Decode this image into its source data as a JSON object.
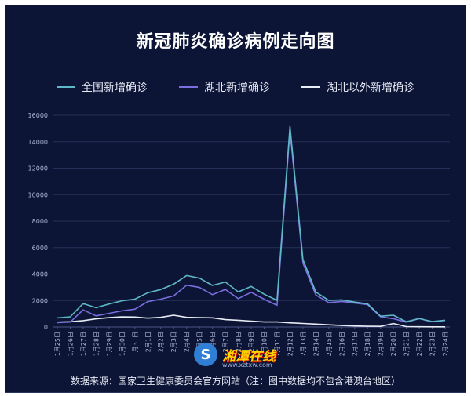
{
  "title": "新冠肺炎确诊病例走向图",
  "source": "数据来源：国家卫生健康委员会官方网站（注：图中数据均不包含港澳台地区）",
  "watermark": {
    "name": "湘潭在线",
    "url": "www.xztxw.com"
  },
  "chart_data": {
    "type": "line",
    "title": "新冠肺炎确诊病例走向图",
    "xlabel": "",
    "ylabel": "",
    "ylim": [
      0,
      16000
    ],
    "yticks": [
      0,
      2000,
      4000,
      6000,
      8000,
      10000,
      12000,
      14000,
      16000
    ],
    "grid": true,
    "legend_position": "top",
    "categories": [
      "1月25日",
      "1月26日",
      "1月27日",
      "1月28日",
      "1月29日",
      "1月30日",
      "1月31日",
      "2月1日",
      "2月2日",
      "2月3日",
      "2月4日",
      "2月5日",
      "2月6日",
      "2月7日",
      "2月8日",
      "2月9日",
      "2月10日",
      "2月11日",
      "2月12日",
      "2月13日",
      "2月14日",
      "2月15日",
      "2月16日",
      "2月17日",
      "2月18日",
      "2月19日",
      "2月20日",
      "2月21日",
      "2月22日",
      "2月23日",
      "2月24日"
    ],
    "series": [
      {
        "name": "全国新增确诊",
        "color": "#5fb8c8",
        "values": [
          688,
          769,
          1771,
          1459,
          1737,
          1982,
          2102,
          2590,
          2829,
          3235,
          3887,
          3694,
          3143,
          3399,
          2656,
          3062,
          2478,
          2015,
          15152,
          5090,
          2641,
          2009,
          2048,
          1886,
          1749,
          820,
          889,
          397,
          648,
          409,
          508
        ]
      },
      {
        "name": "湖北新增确诊",
        "color": "#7a6ee0",
        "values": [
          323,
          371,
          1291,
          840,
          1032,
          1220,
          1347,
          1921,
          2103,
          2345,
          3156,
          2987,
          2447,
          2841,
          2147,
          2618,
          2097,
          1638,
          14840,
          4823,
          2420,
          1843,
          1933,
          1807,
          1693,
          775,
          631,
          366,
          630,
          398,
          499
        ]
      },
      {
        "name": "湖北以外新增确诊",
        "color": "#e8ecf5",
        "values": [
          365,
          398,
          480,
          619,
          705,
          762,
          755,
          669,
          726,
          890,
          731,
          707,
          696,
          558,
          509,
          444,
          381,
          377,
          312,
          267,
          221,
          166,
          115,
          79,
          56,
          45,
          258,
          31,
          18,
          11,
          9
        ]
      }
    ]
  }
}
